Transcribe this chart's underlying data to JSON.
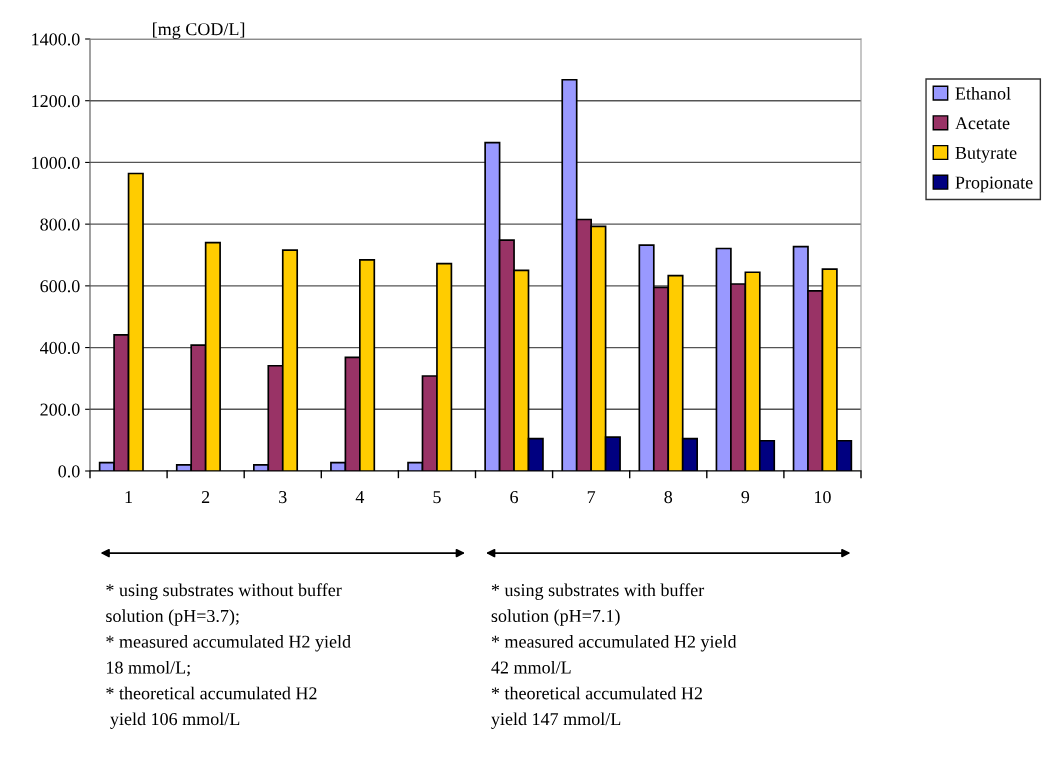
{
  "chart_data": {
    "type": "bar",
    "ylabel": "[mg COD/L]",
    "categories": [
      "1",
      "2",
      "3",
      "4",
      "5",
      "6",
      "7",
      "8",
      "9",
      "10"
    ],
    "series": [
      {
        "name": "Ethanol",
        "color": "#9999ff",
        "values": [
          27,
          20,
          20,
          27,
          27,
          1064,
          1268,
          732,
          721,
          727
        ]
      },
      {
        "name": "Acetate",
        "color": "#993366",
        "values": [
          441,
          408,
          341,
          368,
          308,
          748,
          815,
          595,
          606,
          584
        ]
      },
      {
        "name": "Butyrate",
        "color": "#ffcc00",
        "values": [
          964,
          740,
          716,
          684,
          672,
          650,
          793,
          633,
          644,
          654
        ]
      },
      {
        "name": "Propionate",
        "color": "#000080",
        "values": [
          null,
          null,
          null,
          null,
          null,
          105,
          110,
          105,
          98,
          98
        ]
      }
    ],
    "ylim": [
      0,
      1400
    ],
    "yticks": [
      {
        "value": 0,
        "label": "0.0"
      },
      {
        "value": 200,
        "label": "200.0"
      },
      {
        "value": 400,
        "label": "400.0"
      },
      {
        "value": 600,
        "label": "600.0"
      },
      {
        "value": 800,
        "label": "800.0"
      },
      {
        "value": 1000,
        "label": "1000.0"
      },
      {
        "value": 1200,
        "label": "1200.0"
      },
      {
        "value": 1400,
        "label": "1400.0"
      }
    ],
    "grid": "y",
    "legend": "right",
    "annotations": [
      "* using substrates without buffer\nsolution (pH=3.7);\n* measured accumulated H2 yield\n18 mmol/L;\n* theoretical accumulated H2\n yield 106 mmol/L",
      "* using substrates with buffer\nsolution (pH=7.1)\n* measured accumulated H2 yield\n42 mmol/L\n* theoretical accumulated H2\nyield 147 mmol/L"
    ]
  }
}
